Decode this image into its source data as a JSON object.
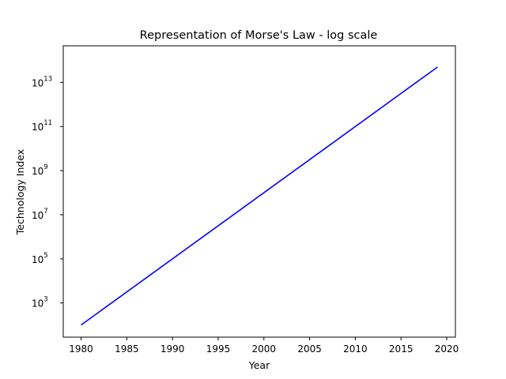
{
  "chart_data": {
    "type": "line",
    "title": "Representation of Morse's Law - log scale",
    "xlabel": "Year",
    "ylabel": "Technology Index",
    "yscale": "log",
    "xlim": [
      1978.05,
      2020.95
    ],
    "ylim_log10": [
      1.45,
      14.66
    ],
    "xticks": [
      1980,
      1985,
      1990,
      1995,
      2000,
      2005,
      2010,
      2015,
      2020
    ],
    "yticks": [
      {
        "base": "10",
        "exp": "3"
      },
      {
        "base": "10",
        "exp": "5"
      },
      {
        "base": "10",
        "exp": "7"
      },
      {
        "base": "10",
        "exp": "9"
      },
      {
        "base": "10",
        "exp": "11"
      },
      {
        "base": "10",
        "exp": "13"
      }
    ],
    "grid": false,
    "line_color": "#0000ff",
    "series": [
      {
        "x": [
          1980,
          2019
        ],
        "y": [
          100,
          50000000000000
        ]
      }
    ]
  }
}
